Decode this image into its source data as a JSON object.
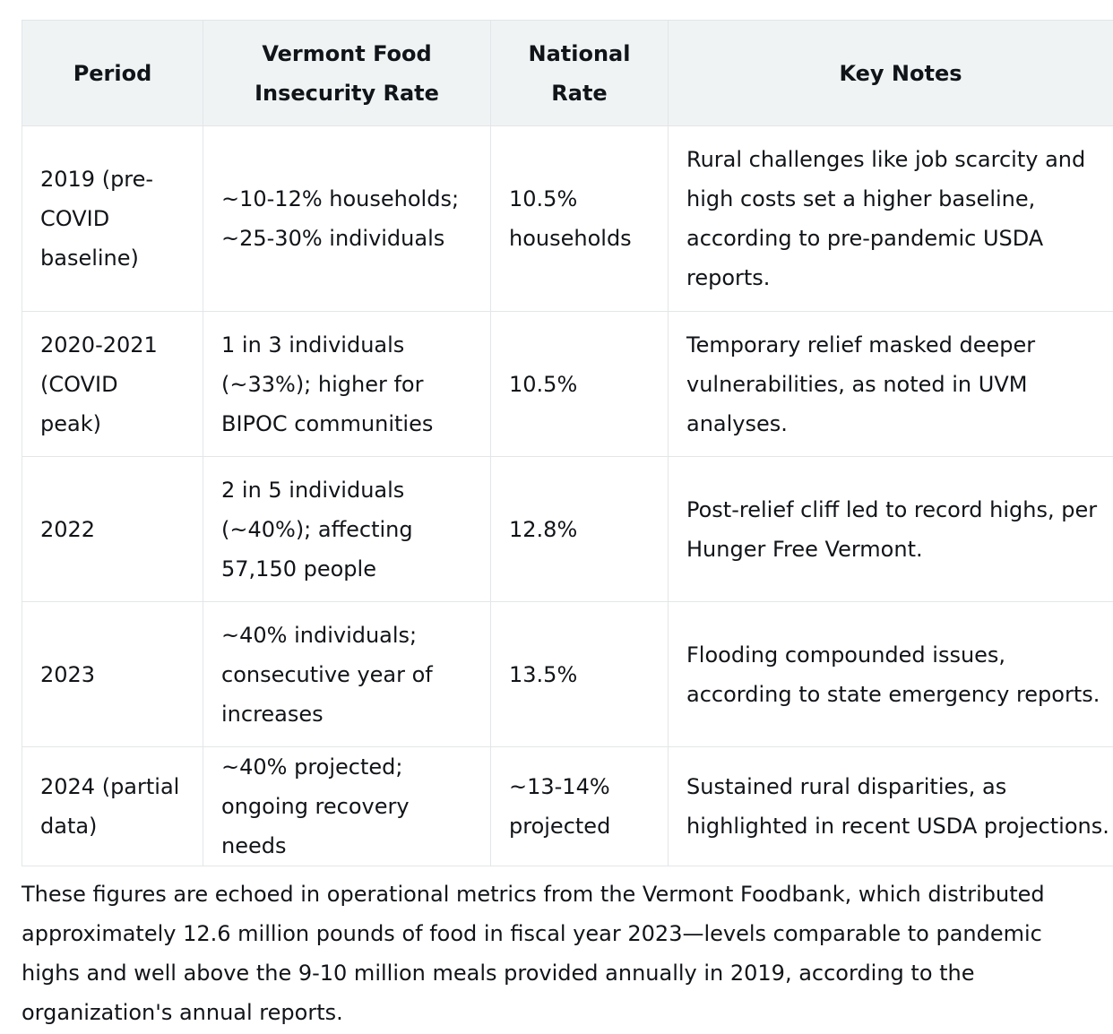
{
  "table": {
    "headers": [
      "Period",
      "Vermont Food Insecurity Rate",
      "National Rate",
      "Key Notes"
    ],
    "rows": [
      {
        "period": "2019 (pre-COVID baseline)",
        "vermont": "~10-12% households; ~25-30% individuals",
        "national": "10.5% households",
        "notes": "Rural challenges like job scarcity and high costs set a higher baseline, according to pre-pandemic USDA reports."
      },
      {
        "period": "2020-2021 (COVID peak)",
        "vermont": "1 in 3 individuals (~33%); higher for BIPOC communities",
        "national": "10.5%",
        "notes": "Temporary relief masked deeper vulnerabilities, as noted in UVM analyses."
      },
      {
        "period": "2022",
        "vermont": "2 in 5 individuals (~40%); affecting 57,150 people",
        "national": "12.8%",
        "notes": "Post-relief cliff led to record highs, per Hunger Free Vermont."
      },
      {
        "period": "2023",
        "vermont": "~40% individuals; consecutive year of increases",
        "national": "13.5%",
        "notes": "Flooding compounded issues, according to state emergency reports."
      },
      {
        "period": "2024 (partial data)",
        "vermont": "~40% projected; ongoing recovery needs",
        "national": "~13-14% projected",
        "notes": "Sustained rural disparities, as highlighted in recent USDA projections."
      }
    ]
  },
  "footer": {
    "paragraph": "These figures are echoed in operational metrics from the Vermont Foodbank, which distributed approximately 12.6 million pounds of food in fiscal year 2023—levels comparable to pandemic highs and well above the 9-10 million meals provided annually in 2019, according to the organization's annual reports."
  }
}
